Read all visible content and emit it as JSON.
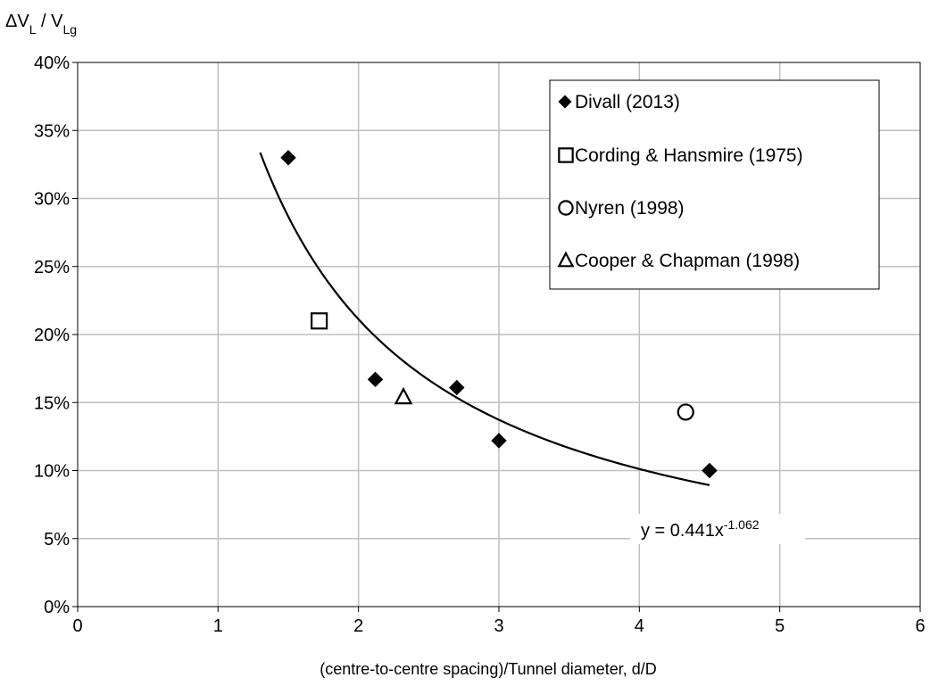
{
  "chart_data": {
    "type": "scatter",
    "ylabel": {
      "base": "ΔV",
      "sub1": "L",
      "sep": " / V",
      "sub2": "Lg"
    },
    "xlabel": "(centre-to-centre spacing)/Tunnel diameter, d/D",
    "xlim": [
      0,
      6
    ],
    "ylim": [
      0,
      0.4
    ],
    "x_ticks": [
      0,
      1,
      2,
      3,
      4,
      5,
      6
    ],
    "y_ticks": [
      {
        "value": 0.0,
        "label": "0%"
      },
      {
        "value": 0.05,
        "label": "5%"
      },
      {
        "value": 0.1,
        "label": "10%"
      },
      {
        "value": 0.15,
        "label": "15%"
      },
      {
        "value": 0.2,
        "label": "20%"
      },
      {
        "value": 0.25,
        "label": "25%"
      },
      {
        "value": 0.3,
        "label": "30%"
      },
      {
        "value": 0.35,
        "label": "35%"
      },
      {
        "value": 0.4,
        "label": "40%"
      }
    ],
    "grid": true,
    "legend_position": "top-right",
    "series": [
      {
        "name": "Divall (2013)",
        "marker": "diamond",
        "points": [
          [
            1.5,
            0.33
          ],
          [
            2.12,
            0.167
          ],
          [
            2.7,
            0.161
          ],
          [
            3.0,
            0.122
          ],
          [
            4.5,
            0.1
          ]
        ]
      },
      {
        "name": "Cording & Hansmire (1975)",
        "marker": "square",
        "points": [
          [
            1.72,
            0.21
          ]
        ]
      },
      {
        "name": "Nyren (1998)",
        "marker": "circle",
        "points": [
          [
            4.33,
            0.143
          ]
        ]
      },
      {
        "name": "Cooper & Chapman (1998)",
        "marker": "triangle",
        "points": [
          [
            2.32,
            0.154
          ]
        ]
      }
    ],
    "trendline": {
      "type": "power",
      "a": 0.441,
      "b": -1.062,
      "x_range": [
        1.3,
        4.5
      ],
      "label_main": "y = 0.441x",
      "label_exp": "-1.062"
    }
  }
}
